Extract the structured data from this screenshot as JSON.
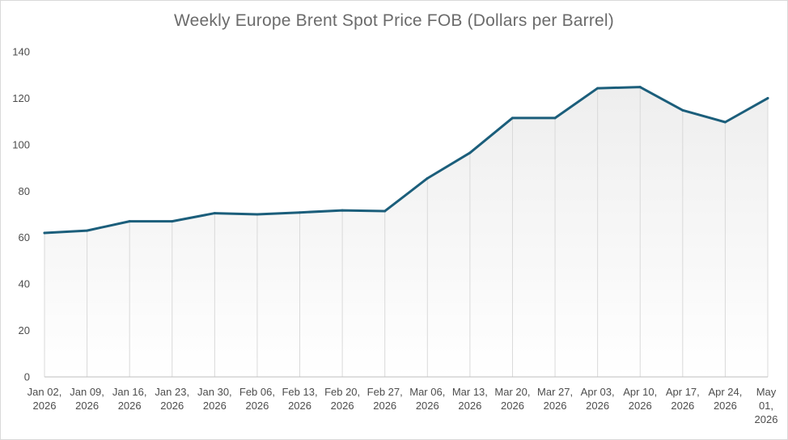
{
  "chart_data": {
    "type": "area",
    "title": "Weekly Europe Brent Spot Price FOB  (Dollars per Barrel)",
    "xlabel": "",
    "ylabel": "",
    "ylim": [
      0,
      140
    ],
    "yticks": [
      0,
      20,
      40,
      60,
      80,
      100,
      120,
      140
    ],
    "grid": false,
    "legend": "none",
    "categories": [
      [
        "Jan 02,",
        "2026"
      ],
      [
        "Jan 09,",
        "2026"
      ],
      [
        "Jan 16,",
        "2026"
      ],
      [
        "Jan 23,",
        "2026"
      ],
      [
        "Jan 30,",
        "2026"
      ],
      [
        "Feb 06,",
        "2026"
      ],
      [
        "Feb 13,",
        "2026"
      ],
      [
        "Feb 20,",
        "2026"
      ],
      [
        "Feb 27,",
        "2026"
      ],
      [
        "Mar 06,",
        "2026"
      ],
      [
        "Mar 13,",
        "2026"
      ],
      [
        "Mar 20,",
        "2026"
      ],
      [
        "Mar 27,",
        "2026"
      ],
      [
        "Apr 03,",
        "2026"
      ],
      [
        "Apr 10,",
        "2026"
      ],
      [
        "Apr 17,",
        "2026"
      ],
      [
        "Apr 24,",
        "2026"
      ],
      [
        "May",
        "01,",
        "2026"
      ]
    ],
    "series": [
      {
        "values": [
          62.0,
          63.0,
          67.0,
          67.0,
          70.5,
          70.0,
          70.8,
          71.7,
          71.4,
          85.5,
          96.5,
          111.5,
          111.5,
          124.3,
          124.8,
          114.8,
          109.7,
          120.0
        ]
      }
    ],
    "colors": {
      "line": "#1b5e7b",
      "drop_lines": "#d9d9d9",
      "area_top": "#eeeeee",
      "area_bottom": "#ffffff",
      "axis": "#bfbfbf"
    }
  }
}
